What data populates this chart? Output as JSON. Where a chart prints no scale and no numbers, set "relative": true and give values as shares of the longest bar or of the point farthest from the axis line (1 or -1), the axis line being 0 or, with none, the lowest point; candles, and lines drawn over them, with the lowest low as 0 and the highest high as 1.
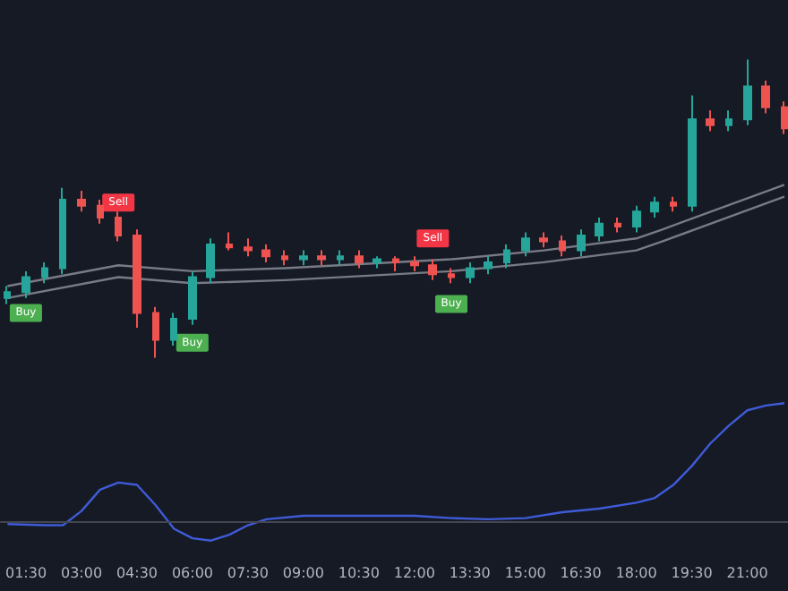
{
  "chart_data": [
    {
      "type": "candlestick",
      "relative": true,
      "tick_labels": false,
      "xlim": [
        0.8,
        22.1
      ],
      "x": [
        1,
        1.5,
        2,
        2.5,
        3,
        3.5,
        4,
        4.5,
        5,
        5.5,
        6,
        6.5,
        7,
        7.5,
        8,
        8.5,
        9,
        9.5,
        10,
        10.5,
        11,
        11.5,
        12,
        12.5,
        13,
        13.5,
        14,
        14.5,
        15,
        15.5,
        16,
        16.5,
        17,
        17.5,
        18,
        18.5,
        19,
        19.5,
        20,
        20.5,
        21,
        21.5,
        22
      ],
      "ohlc": [
        [
          0.2,
          0.24,
          0.18,
          0.22
        ],
        [
          0.22,
          0.29,
          0.2,
          0.27
        ],
        [
          0.27,
          0.32,
          0.25,
          0.3
        ],
        [
          0.3,
          0.57,
          0.28,
          0.53
        ],
        [
          0.53,
          0.56,
          0.49,
          0.51
        ],
        [
          0.51,
          0.53,
          0.45,
          0.47
        ],
        [
          0.47,
          0.49,
          0.39,
          0.41
        ],
        [
          0.41,
          0.43,
          0.1,
          0.15
        ],
        [
          0.15,
          0.17,
          0.0,
          0.06
        ],
        [
          0.06,
          0.15,
          0.04,
          0.13
        ],
        [
          0.13,
          0.29,
          0.11,
          0.27
        ],
        [
          0.27,
          0.4,
          0.25,
          0.38
        ],
        [
          0.38,
          0.42,
          0.36,
          0.37
        ],
        [
          0.37,
          0.4,
          0.34,
          0.36
        ],
        [
          0.36,
          0.38,
          0.32,
          0.34
        ],
        [
          0.34,
          0.36,
          0.31,
          0.33
        ],
        [
          0.33,
          0.36,
          0.31,
          0.34
        ],
        [
          0.34,
          0.36,
          0.31,
          0.33
        ],
        [
          0.33,
          0.36,
          0.31,
          0.34
        ],
        [
          0.34,
          0.36,
          0.3,
          0.32
        ],
        [
          0.32,
          0.34,
          0.3,
          0.33
        ],
        [
          0.33,
          0.34,
          0.29,
          0.32
        ],
        [
          0.32,
          0.34,
          0.29,
          0.31
        ],
        [
          0.31,
          0.33,
          0.26,
          0.28
        ],
        [
          0.28,
          0.3,
          0.25,
          0.27
        ],
        [
          0.27,
          0.32,
          0.25,
          0.3
        ],
        [
          0.3,
          0.34,
          0.28,
          0.32
        ],
        [
          0.32,
          0.38,
          0.3,
          0.36
        ],
        [
          0.36,
          0.42,
          0.34,
          0.4
        ],
        [
          0.4,
          0.42,
          0.37,
          0.39
        ],
        [
          0.39,
          0.41,
          0.34,
          0.36
        ],
        [
          0.36,
          0.43,
          0.34,
          0.41
        ],
        [
          0.41,
          0.47,
          0.39,
          0.45
        ],
        [
          0.45,
          0.47,
          0.42,
          0.44
        ],
        [
          0.44,
          0.51,
          0.42,
          0.49
        ],
        [
          0.49,
          0.54,
          0.47,
          0.52
        ],
        [
          0.52,
          0.54,
          0.49,
          0.51
        ],
        [
          0.51,
          0.88,
          0.49,
          0.8
        ],
        [
          0.8,
          0.83,
          0.76,
          0.78
        ],
        [
          0.78,
          0.83,
          0.76,
          0.8
        ],
        [
          0.8,
          1.0,
          0.78,
          0.91
        ],
        [
          0.91,
          0.93,
          0.82,
          0.84
        ],
        [
          0.84,
          0.86,
          0.75,
          0.77
        ]
      ],
      "series": [
        {
          "type": "line",
          "color": "#787b86",
          "x": [
            1,
            4,
            6,
            8.5,
            13,
            15.5,
            18,
            18.7,
            22
          ],
          "values": [
            0.2,
            0.27,
            0.25,
            0.26,
            0.29,
            0.32,
            0.36,
            0.39,
            0.54
          ]
        },
        {
          "type": "line",
          "color": "#787b86",
          "x": [
            1,
            4,
            6,
            8.5,
            13,
            15.5,
            18,
            18.7,
            22
          ],
          "values": [
            0.24,
            0.31,
            0.29,
            0.3,
            0.33,
            0.36,
            0.4,
            0.43,
            0.58
          ]
        }
      ],
      "annotations": [
        {
          "text": "Buy",
          "x": 1.5,
          "y": 0.15
        },
        {
          "text": "Sell",
          "x": 4,
          "y": 0.52
        },
        {
          "text": "Buy",
          "x": 6,
          "y": 0.05
        },
        {
          "text": "Sell",
          "x": 12.5,
          "y": 0.4
        },
        {
          "text": "Buy",
          "x": 13,
          "y": 0.18
        }
      ]
    },
    {
      "type": "line",
      "relative": true,
      "tick_labels": "x",
      "color": "#3f5bd8",
      "xlim": [
        0.8,
        22.1
      ],
      "xticks": [
        {
          "value": 1.5,
          "label": "01:30"
        },
        {
          "value": 3,
          "label": "03:00"
        },
        {
          "value": 4.5,
          "label": "04:30"
        },
        {
          "value": 6,
          "label": "06:00"
        },
        {
          "value": 7.5,
          "label": "07:30"
        },
        {
          "value": 9,
          "label": "09:00"
        },
        {
          "value": 10.5,
          "label": "10:30"
        },
        {
          "value": 12,
          "label": "12:00"
        },
        {
          "value": 13.5,
          "label": "13:30"
        },
        {
          "value": 15,
          "label": "15:00"
        },
        {
          "value": 16.5,
          "label": "16:30"
        },
        {
          "value": 18,
          "label": "18:00"
        },
        {
          "value": 19.5,
          "label": "19:30"
        },
        {
          "value": 21,
          "label": "21:00"
        }
      ],
      "x": [
        1,
        2,
        2.5,
        3,
        3.5,
        4,
        4.5,
        5,
        5.5,
        6,
        6.5,
        7,
        7.5,
        8,
        9,
        10.5,
        12,
        13,
        14,
        15,
        16,
        17,
        18,
        18.5,
        19,
        19.5,
        20,
        20.5,
        21,
        21.5,
        22
      ],
      "values": [
        -0.02,
        -0.03,
        -0.03,
        0.09,
        0.27,
        0.33,
        0.31,
        0.14,
        -0.06,
        -0.14,
        -0.16,
        -0.11,
        -0.03,
        0.02,
        0.05,
        0.05,
        0.05,
        0.03,
        0.02,
        0.03,
        0.08,
        0.11,
        0.16,
        0.2,
        0.31,
        0.47,
        0.66,
        0.81,
        0.94,
        0.98,
        1.0
      ],
      "ref_lines": [
        {
          "axis": "y",
          "value": 0,
          "color": "#434651"
        }
      ]
    }
  ]
}
